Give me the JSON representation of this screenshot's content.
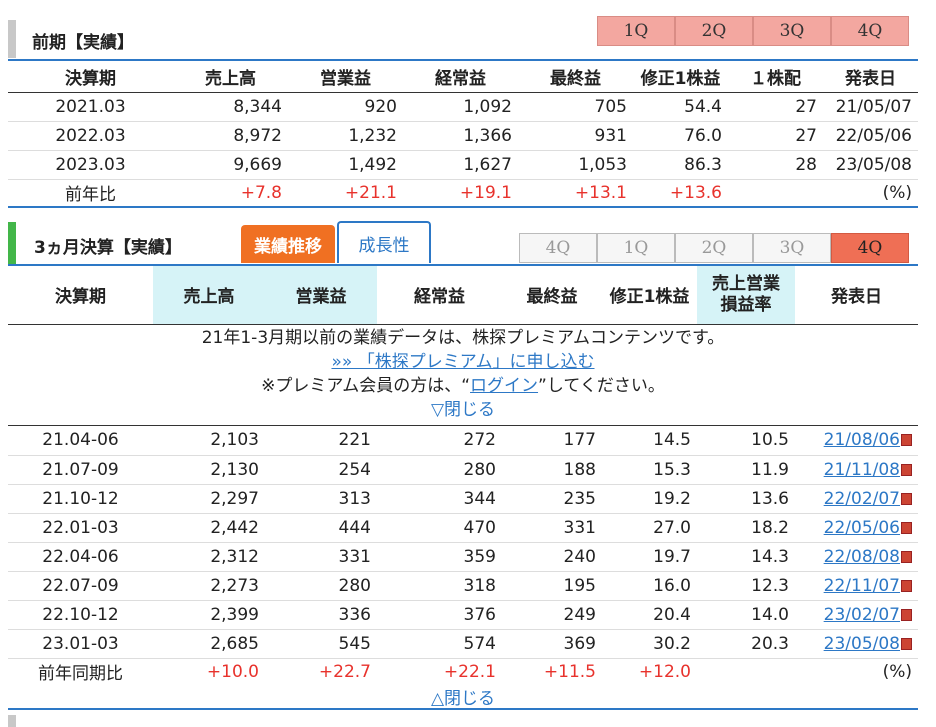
{
  "annual": {
    "title": "前期【実績】",
    "quarter_buttons": [
      "1Q",
      "2Q",
      "3Q",
      "4Q"
    ],
    "headers": [
      "決算期",
      "売上高",
      "営業益",
      "経常益",
      "最終益",
      "修正1株益",
      "１株配",
      "発表日"
    ],
    "rows": [
      [
        "2021.03",
        "8,344",
        "920",
        "1,092",
        "705",
        "54.4",
        "27",
        "21/05/07"
      ],
      [
        "2022.03",
        "8,972",
        "1,232",
        "1,366",
        "931",
        "76.0",
        "27",
        "22/05/06"
      ],
      [
        "2023.03",
        "9,669",
        "1,492",
        "1,627",
        "1,053",
        "86.3",
        "28",
        "23/05/08"
      ]
    ],
    "yoy": [
      "前年比",
      "+7.8",
      "+21.1",
      "+19.1",
      "+13.1",
      "+13.6",
      "",
      "(%)"
    ]
  },
  "quarterly": {
    "title": "3ヵ月決算【実績】",
    "tab_active": "業績推移",
    "tab_other": "成長性",
    "quarter_buttons": [
      "4Q",
      "1Q",
      "2Q",
      "3Q",
      "4Q"
    ],
    "headers": [
      "決算期",
      "売上高",
      "営業益",
      "経常益",
      "最終益",
      "修正1株益",
      "売上営業損益率",
      "発表日"
    ],
    "header_margin_line1": "売上営業",
    "header_margin_line2": "損益率",
    "notice": {
      "line1": "21年1-3月期以前の業績データは、株探プレミアムコンテンツです。",
      "link": "»» 「株探プレミアム」に申し込む",
      "line3_pre": "※プレミアム会員の方は、“",
      "login": "ログイン",
      "line3_post": "”してください。",
      "close_top": "▽閉じる"
    },
    "rows": [
      [
        "21.04-06",
        "2,103",
        "221",
        "272",
        "177",
        "14.5",
        "10.5",
        "21/08/06"
      ],
      [
        "21.07-09",
        "2,130",
        "254",
        "280",
        "188",
        "15.3",
        "11.9",
        "21/11/08"
      ],
      [
        "21.10-12",
        "2,297",
        "313",
        "344",
        "235",
        "19.2",
        "13.6",
        "22/02/07"
      ],
      [
        "22.01-03",
        "2,442",
        "444",
        "470",
        "331",
        "27.0",
        "18.2",
        "22/05/06"
      ],
      [
        "22.04-06",
        "2,312",
        "331",
        "359",
        "240",
        "19.7",
        "14.3",
        "22/08/08"
      ],
      [
        "22.07-09",
        "2,273",
        "280",
        "318",
        "195",
        "16.0",
        "12.3",
        "22/11/07"
      ],
      [
        "22.10-12",
        "2,399",
        "336",
        "376",
        "249",
        "20.4",
        "14.0",
        "23/02/07"
      ],
      [
        "23.01-03",
        "2,685",
        "545",
        "574",
        "369",
        "30.2",
        "20.3",
        "23/05/08"
      ]
    ],
    "yoy": [
      "前年同期比",
      "+10.0",
      "+22.7",
      "+22.1",
      "+11.5",
      "+12.0",
      "",
      "(%)"
    ],
    "close_bottom": "△閉じる"
  },
  "colors": {
    "accent_green": "#43b649",
    "accent_gray": "#c8c8c8",
    "positive_red": "#e8322c",
    "link_blue": "#2d78c6",
    "tab_orange": "#f07022",
    "header_cyan": "#d6f3f7"
  }
}
